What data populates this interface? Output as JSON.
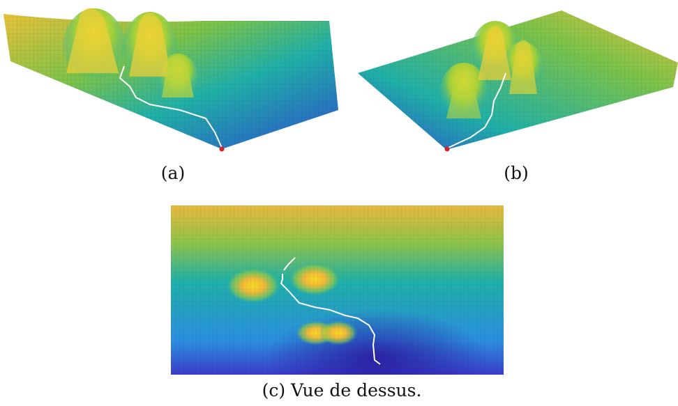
{
  "figure": {
    "captions": {
      "a": "(a)",
      "b": "(b)",
      "c": "(c) Vue de dessus."
    },
    "colors": {
      "low": "#3a2bb0",
      "mid_blue": "#2a7fd8",
      "teal": "#20b0a8",
      "green": "#7cc34a",
      "yellow": "#f6dc26",
      "orange": "#f2b83a",
      "path": "#ffffff",
      "goal_marker": "#d8202a"
    }
  }
}
